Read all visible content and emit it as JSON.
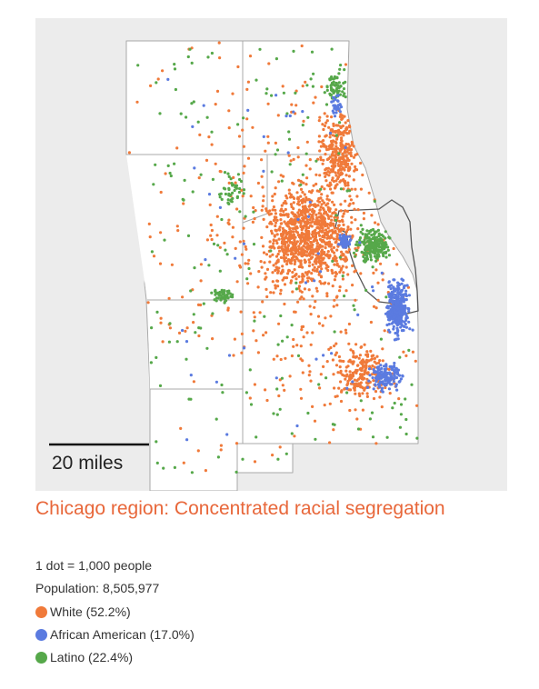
{
  "title": "Chicago region: Concentrated racial segregation",
  "dot_note": "1 dot = 1,000 people",
  "population": "Population: 8,505,977",
  "scale_label": "20 miles",
  "colors": {
    "title": "#e8673a",
    "map_background": "#ececec",
    "boundary": "#a8a8a8",
    "city_boundary": "#555555",
    "white": "#f07a3a",
    "african_american": "#5b7be0",
    "latino": "#56a84a"
  },
  "legend": [
    {
      "key": "white",
      "label": "White (52.2%)",
      "color": "#f07a3a"
    },
    {
      "key": "african_american",
      "label": "African American (17.0%)",
      "color": "#5b7be0"
    },
    {
      "key": "latino",
      "label": "Latino (22.4%)",
      "color": "#56a84a"
    }
  ]
}
